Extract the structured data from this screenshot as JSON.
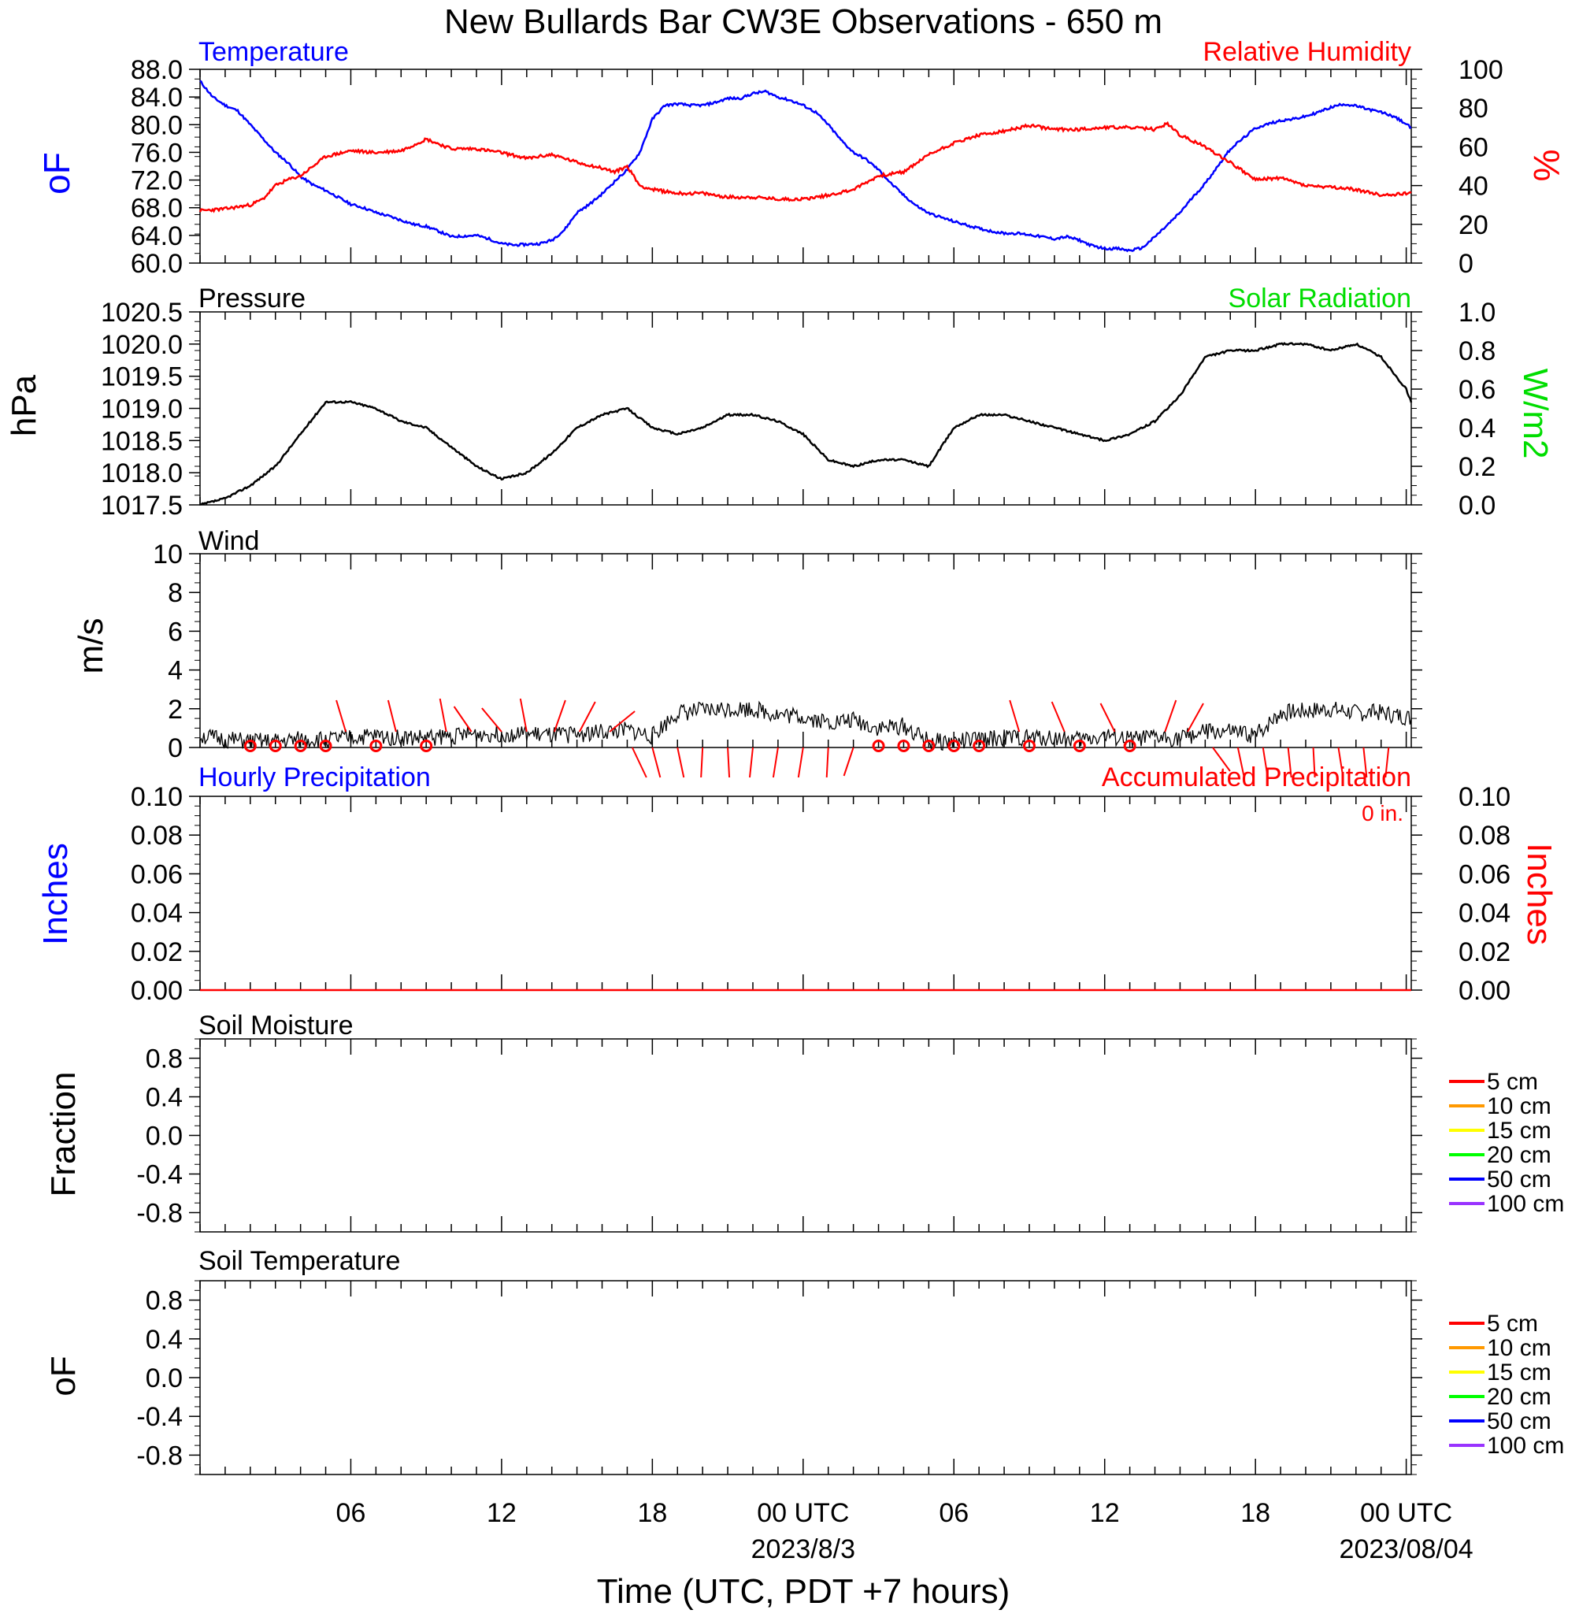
{
  "title": "New Bullards Bar CW3E Observations - 650 m",
  "xlabel": "Time (UTC, PDT +7 hours)",
  "x_ticks": [
    {
      "hour": 6,
      "label": "06"
    },
    {
      "hour": 12,
      "label": "12"
    },
    {
      "hour": 18,
      "label": "18"
    },
    {
      "hour": 24,
      "label": "00 UTC"
    },
    {
      "hour": 30,
      "label": "06"
    },
    {
      "hour": 36,
      "label": "12"
    },
    {
      "hour": 42,
      "label": "18"
    },
    {
      "hour": 48,
      "label": "00 UTC"
    }
  ],
  "x_date_labels": [
    {
      "hour": 24,
      "label": "2023/8/3"
    },
    {
      "hour": 48,
      "label": "2023/08/04"
    }
  ],
  "colors": {
    "temperature": "#0000ff",
    "humidity": "#ff0000",
    "pressure": "#000000",
    "solar": "#00dd00",
    "hourly_precip": "#0000ff",
    "accum_precip": "#ff0000",
    "wind": "#000000",
    "barb": "#ff0000"
  },
  "panels": {
    "temp_rh": {
      "left_title": "Temperature",
      "right_title": "Relative Humidity",
      "left_unit": "oF",
      "right_unit": "%",
      "left_ticks": [
        "60.0",
        "64.0",
        "68.0",
        "72.0",
        "76.0",
        "80.0",
        "84.0",
        "88.0"
      ],
      "right_ticks": [
        "0",
        "20",
        "40",
        "60",
        "80",
        "100"
      ]
    },
    "pressure": {
      "left_title": "Pressure",
      "right_title": "Solar Radiation",
      "left_unit": "hPa",
      "right_unit": "W/m2",
      "left_ticks": [
        "1017.5",
        "1018.0",
        "1018.5",
        "1019.0",
        "1019.5",
        "1020.0",
        "1020.5"
      ],
      "right_ticks": [
        "0.0",
        "0.2",
        "0.4",
        "0.6",
        "0.8",
        "1.0"
      ]
    },
    "wind": {
      "left_title": "Wind",
      "left_unit": "m/s",
      "left_ticks": [
        "0",
        "2",
        "4",
        "6",
        "8",
        "10"
      ]
    },
    "precip": {
      "left_title": "Hourly Precipitation",
      "right_title": "Accumulated Precipitation",
      "total_label": "0 in.",
      "left_unit": "Inches",
      "right_unit": "Inches",
      "left_ticks": [
        "0.00",
        "0.02",
        "0.04",
        "0.06",
        "0.08",
        "0.10"
      ],
      "right_ticks": [
        "0.00",
        "0.02",
        "0.04",
        "0.06",
        "0.08",
        "0.10"
      ]
    },
    "soil_moisture": {
      "left_title": "Soil Moisture",
      "left_unit": "Fraction",
      "left_ticks": [
        "-0.8",
        "-0.4",
        "0.0",
        "0.4",
        "0.8"
      ]
    },
    "soil_temp": {
      "left_title": "Soil Temperature",
      "left_unit": "oF",
      "left_ticks": [
        "-0.8",
        "-0.4",
        "0.0",
        "0.4",
        "0.8"
      ]
    }
  },
  "soil_legend": [
    {
      "label": "5 cm",
      "color": "#ff0000"
    },
    {
      "label": "10 cm",
      "color": "#ff9900"
    },
    {
      "label": "15 cm",
      "color": "#ffff00"
    },
    {
      "label": "20 cm",
      "color": "#00ff00"
    },
    {
      "label": "50 cm",
      "color": "#0000ff"
    },
    {
      "label": "100 cm",
      "color": "#9933ff"
    }
  ],
  "chart_data": [
    {
      "type": "line",
      "title": "Temperature",
      "ylabel": "oF",
      "xlim_hours_utc": [
        0,
        48.2
      ],
      "ylim": [
        60,
        88
      ],
      "series": [
        {
          "name": "Temperature",
          "x": [
            0,
            0.5,
            1,
            1.5,
            2,
            2.5,
            3,
            3.5,
            4,
            4.5,
            5,
            5.5,
            6,
            6.5,
            7,
            7.5,
            8,
            8.5,
            9,
            9.5,
            10,
            10.5,
            11,
            11.5,
            12,
            12.5,
            13,
            13.5,
            14,
            14.5,
            15,
            15.5,
            16,
            16.5,
            17,
            17.5,
            18,
            18.5,
            19,
            19.5,
            20,
            20.5,
            21,
            21.5,
            22,
            22.5,
            23,
            23.5,
            24,
            24.5,
            25,
            25.5,
            26,
            26.5,
            27,
            27.5,
            28,
            28.5,
            29,
            29.5,
            30,
            30.5,
            31,
            31.5,
            32,
            32.5,
            33,
            33.5,
            34,
            34.5,
            35,
            35.5,
            36,
            36.5,
            37,
            37.5,
            38,
            38.5,
            39,
            39.5,
            40,
            40.5,
            41,
            41.5,
            42,
            42.5,
            43,
            43.5,
            44,
            44.5,
            45,
            45.5,
            46,
            46.5,
            47,
            47.5,
            48,
            48.2
          ],
          "y": [
            86.3,
            84,
            82.8,
            82,
            80,
            78,
            76,
            74.5,
            72.5,
            71.3,
            70.5,
            69.5,
            68.5,
            68,
            67.3,
            66.8,
            66.2,
            65.6,
            65.3,
            64.6,
            63.8,
            63.9,
            64,
            63.5,
            62.8,
            62.6,
            62.7,
            62.8,
            63.3,
            64.8,
            67.3,
            68.5,
            70,
            71.8,
            73.5,
            76,
            80.8,
            82.8,
            83,
            82.8,
            82.8,
            83.2,
            83.8,
            83.8,
            84.5,
            84.8,
            84,
            83.5,
            82.8,
            81.8,
            80,
            77.8,
            76,
            75,
            73.5,
            71.5,
            69.8,
            68.3,
            67.2,
            66.6,
            66,
            65.5,
            65,
            64.6,
            64.3,
            64.3,
            64.1,
            63.8,
            63.5,
            63.8,
            63.3,
            62.5,
            62.1,
            62.1,
            61.8,
            62.2,
            63.8,
            65.5,
            67.3,
            69.5,
            71.5,
            74,
            76.5,
            78,
            79.5,
            80.1,
            80.6,
            80.8,
            81.2,
            81.8,
            82.5,
            83,
            82.7,
            82.2,
            81.8,
            81.2,
            80.1,
            79.5
          ],
          "note": ""
        }
      ]
    },
    {
      "type": "line",
      "title": "Relative Humidity",
      "ylabel": "%",
      "xlim_hours_utc": [
        0,
        48.2
      ],
      "ylim": [
        0,
        100
      ],
      "series": [
        {
          "name": "Relative Humidity",
          "x": [
            0,
            1,
            2,
            2.5,
            3,
            3.5,
            4,
            5,
            6,
            7,
            8,
            8.5,
            9,
            10,
            11,
            12,
            13,
            14,
            15,
            16,
            16.5,
            17,
            17.5,
            18,
            19,
            20,
            21,
            22,
            23,
            24,
            25,
            26,
            27,
            28,
            29,
            30,
            31,
            32,
            33,
            34,
            35,
            36,
            37,
            38,
            38.5,
            39,
            40,
            41,
            42,
            43,
            44,
            45,
            46,
            47,
            48,
            48.2
          ],
          "y": [
            27,
            28,
            30,
            33,
            40,
            43,
            45,
            55,
            58,
            57,
            58,
            61,
            64,
            59,
            59,
            57,
            54,
            56,
            52,
            49,
            47,
            50,
            40,
            38,
            36,
            36,
            34,
            34,
            33,
            33,
            35,
            38,
            45,
            47,
            56,
            62,
            66,
            68,
            71,
            69,
            69,
            70,
            70,
            69,
            72,
            66,
            60,
            52,
            43,
            44,
            40,
            39,
            38,
            35,
            36,
            37
          ]
        }
      ]
    },
    {
      "type": "line",
      "title": "Pressure",
      "ylabel": "hPa",
      "xlim_hours_utc": [
        0,
        48.2
      ],
      "ylim": [
        1017.5,
        1020.5
      ],
      "series": [
        {
          "name": "Pressure",
          "x": [
            0,
            1,
            2,
            3,
            4,
            5,
            6,
            7,
            8,
            9,
            10,
            11,
            12,
            13,
            14,
            15,
            16,
            17,
            18,
            19,
            20,
            21,
            22,
            23,
            24,
            25,
            26,
            27,
            28,
            29,
            30,
            31,
            32,
            33,
            34,
            35,
            36,
            37,
            38,
            39,
            40,
            41,
            42,
            43,
            44,
            45,
            46,
            47,
            48,
            48.2
          ],
          "y": [
            1017.5,
            1017.6,
            1017.8,
            1018.1,
            1018.6,
            1019.1,
            1019.1,
            1019.0,
            1018.8,
            1018.7,
            1018.4,
            1018.1,
            1017.9,
            1018.0,
            1018.3,
            1018.7,
            1018.9,
            1019.0,
            1018.7,
            1018.6,
            1018.7,
            1018.9,
            1018.9,
            1018.8,
            1018.6,
            1018.2,
            1018.1,
            1018.2,
            1018.2,
            1018.1,
            1018.7,
            1018.9,
            1018.9,
            1018.8,
            1018.7,
            1018.6,
            1018.5,
            1018.6,
            1018.8,
            1019.2,
            1019.8,
            1019.9,
            1019.9,
            1020.0,
            1020.0,
            1019.9,
            1020.0,
            1019.8,
            1019.3,
            1019.1
          ]
        }
      ]
    },
    {
      "type": "line",
      "title": "Wind",
      "ylabel": "m/s",
      "xlim_hours_utc": [
        0,
        48.2
      ],
      "ylim": [
        0,
        10
      ],
      "series": [
        {
          "name": "Wind speed",
          "x": [
            0,
            1,
            2,
            3,
            4,
            5,
            6,
            7,
            8,
            9,
            10,
            11,
            12,
            13,
            14,
            15,
            16,
            17,
            18,
            19,
            20,
            21,
            22,
            23,
            24,
            25,
            26,
            27,
            28,
            29,
            30,
            31,
            32,
            33,
            34,
            35,
            36,
            37,
            38,
            39,
            40,
            41,
            42,
            43,
            44,
            45,
            46,
            47,
            48,
            48.2
          ],
          "y": [
            0.6,
            0.4,
            0.3,
            0.3,
            0.4,
            0.4,
            0.5,
            0.6,
            0.5,
            0.5,
            0.6,
            0.7,
            0.7,
            0.7,
            0.6,
            0.7,
            0.8,
            0.9,
            0.6,
            1.8,
            1.9,
            2.0,
            2.0,
            1.7,
            1.6,
            1.3,
            1.4,
            1.0,
            1.1,
            0.3,
            0.3,
            0.4,
            0.5,
            0.5,
            0.5,
            0.4,
            0.6,
            0.4,
            0.5,
            0.5,
            0.8,
            0.8,
            0.6,
            1.8,
            1.9,
            2.0,
            1.8,
            1.8,
            1.6,
            1.5
          ]
        }
      ]
    },
    {
      "type": "line",
      "title": "Hourly Precipitation",
      "ylabel": "Inches",
      "ylim": [
        0,
        0.1
      ],
      "series": [
        {
          "name": "Accumulated Precipitation",
          "x": [
            0,
            48.2
          ],
          "y": [
            0,
            0
          ]
        }
      ]
    }
  ]
}
